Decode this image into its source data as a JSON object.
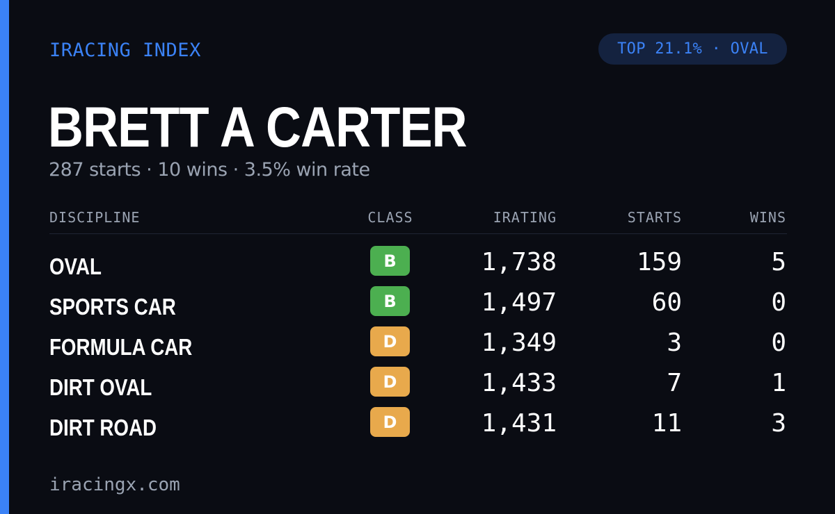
{
  "header": {
    "brand": "IRACING INDEX",
    "rank_badge": "TOP 21.1% · OVAL"
  },
  "driver": {
    "name": "BRETT A CARTER",
    "summary": "287 starts · 10 wins · 3.5% win rate"
  },
  "table": {
    "columns": {
      "discipline": "DISCIPLINE",
      "class": "CLASS",
      "irating": "IRATING",
      "starts": "STARTS",
      "wins": "WINS"
    },
    "rows": [
      {
        "discipline": "OVAL",
        "class": "B",
        "irating": "1,738",
        "starts": "159",
        "wins": "5"
      },
      {
        "discipline": "SPORTS CAR",
        "class": "B",
        "irating": "1,497",
        "starts": "60",
        "wins": "0"
      },
      {
        "discipline": "FORMULA CAR",
        "class": "D",
        "irating": "1,349",
        "starts": "3",
        "wins": "0"
      },
      {
        "discipline": "DIRT OVAL",
        "class": "D",
        "irating": "1,433",
        "starts": "7",
        "wins": "1"
      },
      {
        "discipline": "DIRT ROAD",
        "class": "D",
        "irating": "1,431",
        "starts": "11",
        "wins": "3"
      }
    ]
  },
  "class_colors": {
    "B": "#4caf50",
    "D": "#e8a94c"
  },
  "colors": {
    "background": "#0a0c13",
    "accent": "#3b82f6",
    "muted_text": "#9aa3b2"
  },
  "footer": {
    "site": "iracingx.com"
  }
}
